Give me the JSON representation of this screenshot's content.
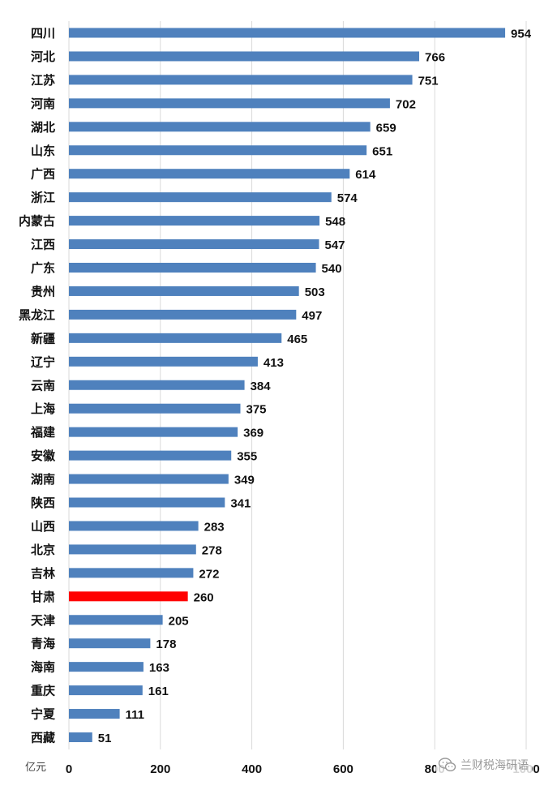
{
  "chart_data": {
    "type": "bar",
    "orientation": "horizontal",
    "categories": [
      "四川",
      "河北",
      "江苏",
      "河南",
      "湖北",
      "山东",
      "广西",
      "浙江",
      "内蒙古",
      "江西",
      "广东",
      "贵州",
      "黑龙江",
      "新疆",
      "辽宁",
      "云南",
      "上海",
      "福建",
      "安徽",
      "湖南",
      "陕西",
      "山西",
      "北京",
      "吉林",
      "甘肃",
      "天津",
      "青海",
      "海南",
      "重庆",
      "宁夏",
      "西藏"
    ],
    "values": [
      954,
      766,
      751,
      702,
      659,
      651,
      614,
      574,
      548,
      547,
      540,
      503,
      497,
      465,
      413,
      384,
      375,
      369,
      355,
      349,
      341,
      283,
      278,
      272,
      260,
      205,
      178,
      163,
      161,
      111,
      51
    ],
    "highlight": "甘肃",
    "x_unit": "亿元",
    "x_ticks": [
      "0",
      "200",
      "400",
      "600",
      "800",
      "1000"
    ],
    "xlim": [
      0,
      1000
    ],
    "grid": "vertical",
    "data_labels": true,
    "legend": "none"
  },
  "colors": {
    "bar": "#4F81BD",
    "highlight_bar": "#FF0000",
    "grid": "#D9D9D9"
  },
  "watermark": {
    "icon": "wechat-icon",
    "text": "兰财税海研语"
  }
}
